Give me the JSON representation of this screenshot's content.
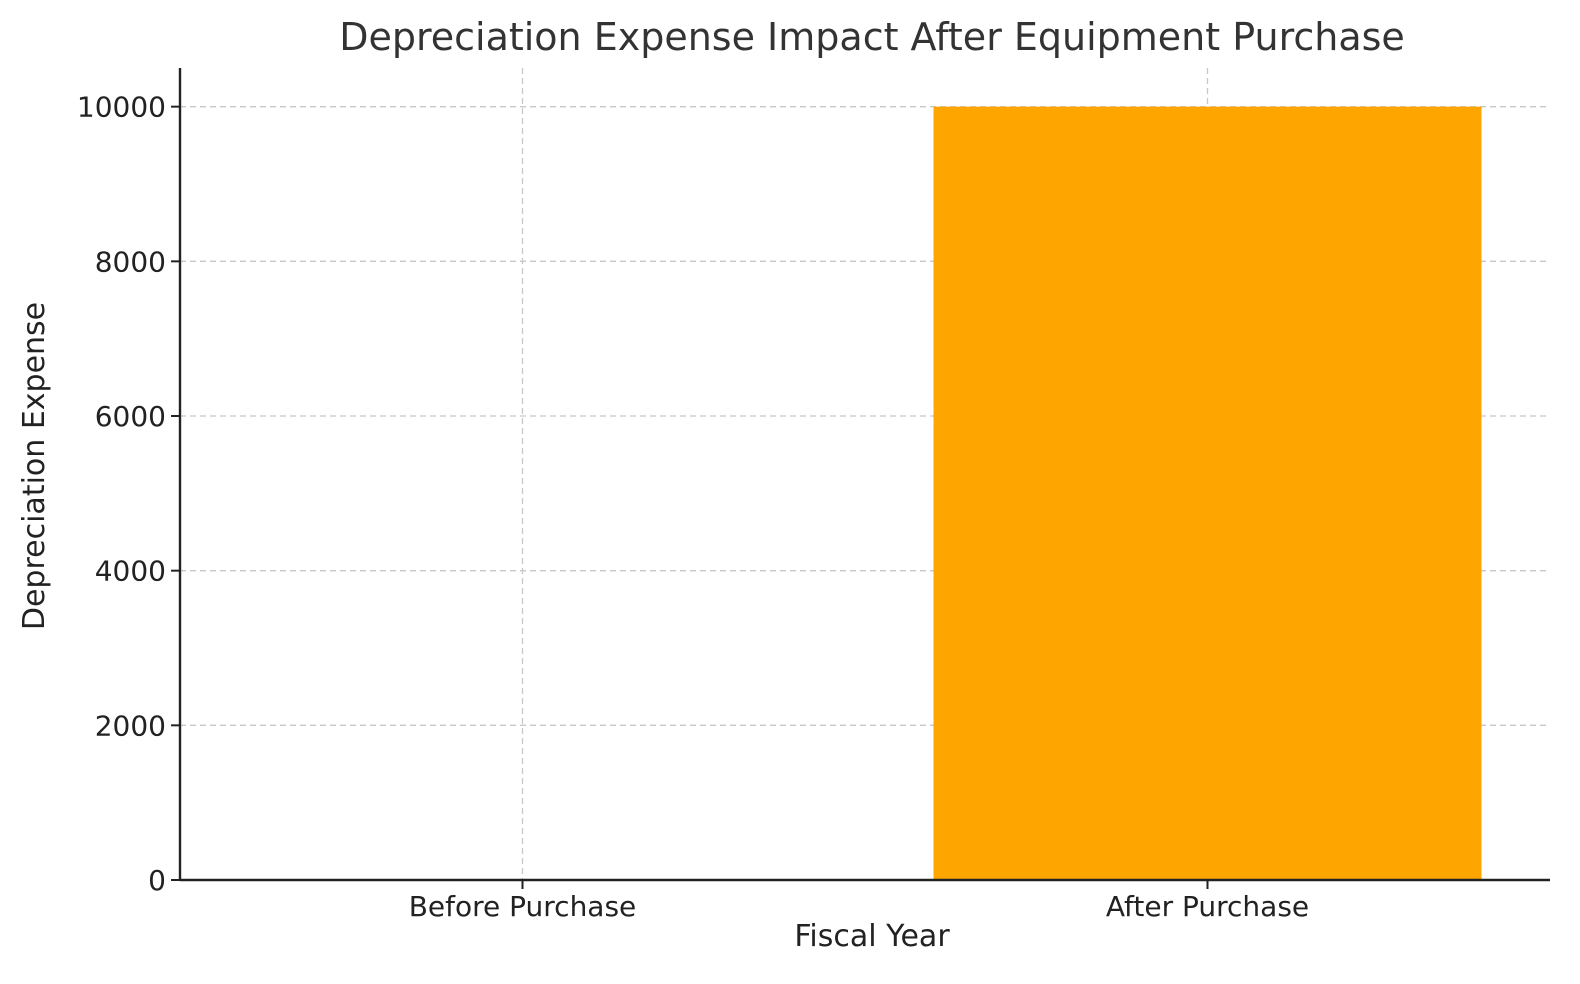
{
  "chart_data": {
    "type": "bar",
    "title": "Depreciation Expense Impact After Equipment Purchase",
    "xlabel": "Fiscal Year",
    "ylabel": "Depreciation Expense",
    "categories": [
      "Before Purchase",
      "After Purchase"
    ],
    "values": [
      0,
      10000
    ],
    "bar_color": "#FFA500",
    "ylim": [
      0,
      10500
    ],
    "yticks": [
      0,
      2000,
      4000,
      6000,
      8000,
      10000
    ],
    "ytick_labels": [
      "0",
      "2000",
      "4000",
      "6000",
      "8000",
      "10000"
    ],
    "grid": true,
    "legend": "none"
  }
}
